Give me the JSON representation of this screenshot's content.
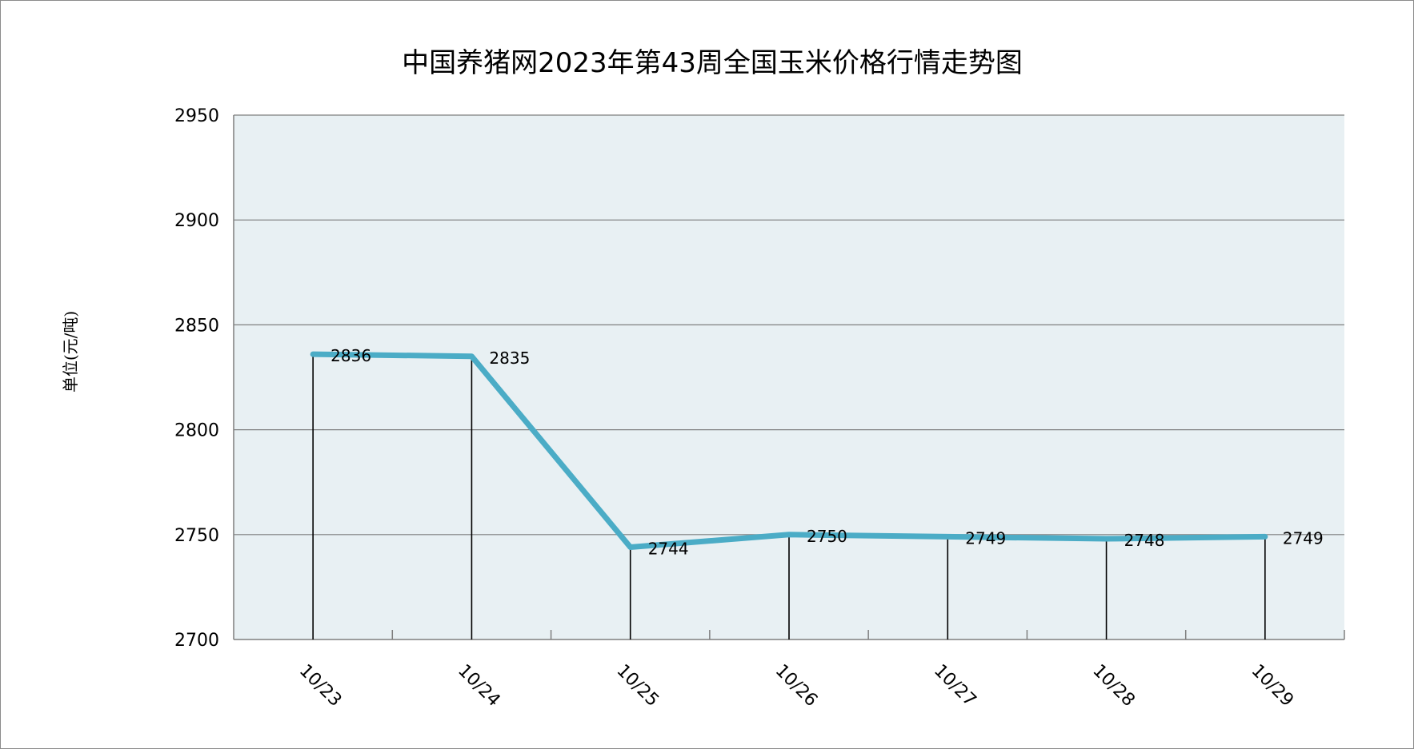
{
  "chart_data": {
    "type": "line",
    "title": "中国养猪网2023年第43周全国玉米价格行情走势图",
    "ylabel": "单位(元/吨)",
    "xlabel": "",
    "categories": [
      "10/23",
      "10/24",
      "10/25",
      "10/26",
      "10/27",
      "10/28",
      "10/29"
    ],
    "series": [
      {
        "values": [
          2836,
          2835,
          2744,
          2750,
          2749,
          2748,
          2749
        ]
      }
    ],
    "ylim": [
      2700,
      2950
    ],
    "yticks": [
      "2950",
      "2900",
      "2850",
      "2800",
      "2750",
      "2700"
    ],
    "data_labels": [
      "2836",
      "2835",
      "2744",
      "2750",
      "2749",
      "2748",
      "2749"
    ],
    "grid": true,
    "drop_lines": true,
    "legend": "none",
    "colors": {
      "line": "#4bacc6",
      "plot_bg": "#e8f0f3",
      "grid": "#7f7f7f"
    }
  }
}
